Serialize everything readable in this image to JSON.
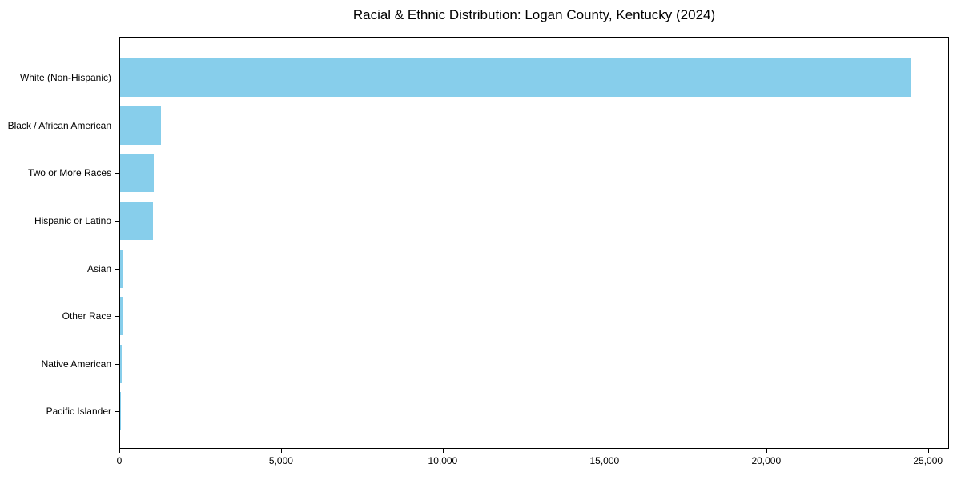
{
  "chart_data": {
    "type": "bar",
    "orientation": "horizontal",
    "title": "Racial & Ethnic Distribution: Logan County, Kentucky (2024)",
    "categories": [
      "White (Non-Hispanic)",
      "Black / African American",
      "Two or More Races",
      "Hispanic or Latino",
      "Asian",
      "Other Race",
      "Native American",
      "Pacific Islander"
    ],
    "values": [
      24470,
      1255,
      1050,
      1005,
      85,
      82,
      60,
      5
    ],
    "bar_color": "#87CEEB",
    "xlabel": "",
    "ylabel": "",
    "xlim": [
      0,
      25650
    ],
    "x_ticks": [
      {
        "value": 0,
        "label": "0"
      },
      {
        "value": 5000,
        "label": "5,000"
      },
      {
        "value": 10000,
        "label": "10,000"
      },
      {
        "value": 15000,
        "label": "15,000"
      },
      {
        "value": 20000,
        "label": "20,000"
      },
      {
        "value": 25000,
        "label": "25,000"
      }
    ],
    "grid": false,
    "legend": null,
    "text_color": "#000000",
    "spine_color": "#000000"
  }
}
